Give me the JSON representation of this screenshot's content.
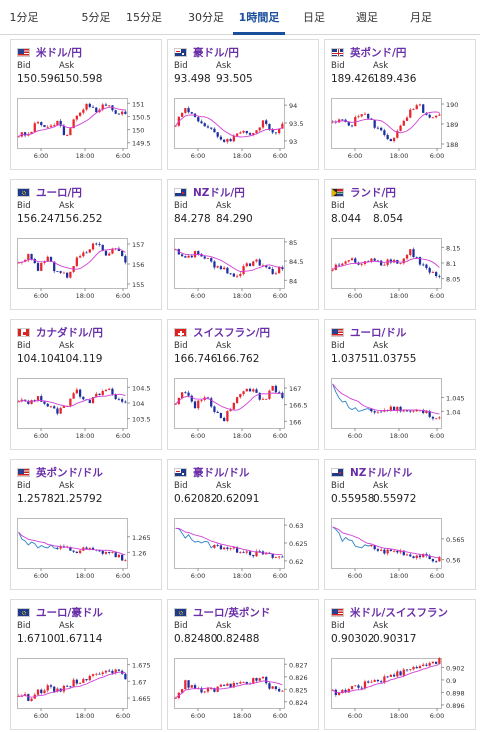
{
  "tabs": [
    {
      "label": "1分足",
      "active": false
    },
    {
      "label": "5分足",
      "active": false
    },
    {
      "label": "15分足",
      "active": false
    },
    {
      "label": "30分足",
      "active": false
    },
    {
      "label": "1時間足",
      "active": true
    },
    {
      "label": "日足",
      "active": false
    },
    {
      "label": "週足",
      "active": false
    },
    {
      "label": "月足",
      "active": false
    }
  ],
  "bid_label": "Bid",
  "ask_label": "Ask",
  "x_ticks": [
    "6:00",
    "18:00",
    "6:00"
  ],
  "colors": {
    "up": "#e8242c",
    "down": "#1b2fa0",
    "ma": "#d23fd6",
    "line": "#2c84c4",
    "frame": "#bbbbbb",
    "title": "#6a2fa8"
  },
  "pairs": [
    {
      "name": "米ドル/円",
      "flag": "us",
      "bid": "150.596",
      "ask": "150.598",
      "y_ticks": [
        "151",
        "150.5",
        "150",
        "149.5"
      ],
      "ylim": [
        149.3,
        151.2
      ],
      "trend": [
        149.8,
        149.8,
        150.3,
        150.0,
        150.3,
        149.7,
        150.6,
        150.9,
        150.7,
        151.0,
        150.6,
        150.7
      ]
    },
    {
      "name": "豪ドル/円",
      "flag": "au",
      "bid": "93.498",
      "ask": "93.505",
      "y_ticks": [
        "94",
        "93.5",
        "93"
      ],
      "ylim": [
        92.8,
        94.2
      ],
      "trend": [
        93.5,
        93.9,
        93.7,
        93.4,
        93.2,
        93.0,
        93.1,
        93.3,
        93.2,
        93.5,
        93.2,
        93.5
      ]
    },
    {
      "name": "英ポンド/円",
      "flag": "gb",
      "bid": "189.426",
      "ask": "189.436",
      "y_ticks": [
        "190",
        "189",
        "188"
      ],
      "ylim": [
        187.8,
        190.3
      ],
      "trend": [
        189.0,
        189.2,
        189.0,
        189.6,
        189.1,
        188.6,
        188.2,
        188.8,
        189.6,
        189.9,
        189.2,
        189.4
      ]
    },
    {
      "name": "ユーロ/円",
      "flag": "eu",
      "bid": "156.247",
      "ask": "156.252",
      "y_ticks": [
        "157",
        "156",
        "155"
      ],
      "ylim": [
        154.8,
        157.3
      ],
      "trend": [
        156.0,
        156.5,
        155.8,
        156.3,
        155.5,
        155.4,
        156.2,
        156.6,
        157.1,
        156.4,
        156.9,
        156.2
      ]
    },
    {
      "name": "NZドル/円",
      "flag": "nz",
      "bid": "84.278",
      "ask": "84.290",
      "y_ticks": [
        "85",
        "84.5",
        "84"
      ],
      "ylim": [
        83.8,
        85.1
      ],
      "trend": [
        84.8,
        84.6,
        84.7,
        84.6,
        84.4,
        84.3,
        84.1,
        84.3,
        84.5,
        84.4,
        84.2,
        84.3
      ]
    },
    {
      "name": "ランド/円",
      "flag": "za",
      "bid": "8.044",
      "ask": "8.054",
      "y_ticks": [
        "8.15",
        "8.1",
        "8.05"
      ],
      "ylim": [
        8.02,
        8.18
      ],
      "trend": [
        8.08,
        8.1,
        8.11,
        8.09,
        8.12,
        8.1,
        8.11,
        8.1,
        8.14,
        8.1,
        8.07,
        8.05
      ]
    },
    {
      "name": "カナダドル/円",
      "flag": "ca",
      "bid": "104.104",
      "ask": "104.119",
      "y_ticks": [
        "104.5",
        "104",
        "103.5"
      ],
      "ylim": [
        103.2,
        104.8
      ],
      "trend": [
        104.1,
        104.0,
        104.2,
        103.9,
        103.7,
        103.9,
        104.4,
        104.0,
        104.2,
        104.5,
        104.1,
        104.1
      ]
    },
    {
      "name": "スイスフラン/円",
      "flag": "ch",
      "bid": "166.746",
      "ask": "166.762",
      "y_ticks": [
        "167",
        "166.5",
        "166"
      ],
      "ylim": [
        165.8,
        167.3
      ],
      "trend": [
        166.6,
        166.9,
        166.4,
        166.8,
        166.3,
        166.1,
        166.6,
        166.9,
        167.0,
        166.6,
        167.0,
        166.7
      ]
    },
    {
      "name": "ユーロ/ドル",
      "flag": "us",
      "bid": "1.03751",
      "ask": "1.03755",
      "y_ticks": [
        "1.045",
        "1.04"
      ],
      "ylim": [
        1.034,
        1.052
      ],
      "trend": [
        1.049,
        1.044,
        1.041,
        1.04,
        1.04,
        1.04,
        1.041,
        1.041,
        1.04,
        1.04,
        1.039,
        1.037
      ]
    },
    {
      "name": "英ポンド/ドル",
      "flag": "us",
      "bid": "1.25782",
      "ask": "1.25792",
      "y_ticks": [
        "1.265",
        "1.26"
      ],
      "ylim": [
        1.255,
        1.271
      ],
      "trend": [
        1.266,
        1.263,
        1.262,
        1.262,
        1.261,
        1.261,
        1.26,
        1.261,
        1.26,
        1.26,
        1.259,
        1.258
      ]
    },
    {
      "name": "豪ドル/ドル",
      "flag": "au",
      "bid": "0.62082",
      "ask": "0.62091",
      "y_ticks": [
        "0.63",
        "0.625",
        "0.62"
      ],
      "ylim": [
        0.618,
        0.632
      ],
      "trend": [
        0.629,
        0.627,
        0.626,
        0.625,
        0.624,
        0.624,
        0.623,
        0.623,
        0.622,
        0.622,
        0.621,
        0.621
      ]
    },
    {
      "name": "NZドル/ドル",
      "flag": "nz",
      "bid": "0.55958",
      "ask": "0.55972",
      "y_ticks": [
        "0.565",
        "0.56"
      ],
      "ylim": [
        0.558,
        0.57
      ],
      "trend": [
        0.568,
        0.565,
        0.564,
        0.563,
        0.563,
        0.562,
        0.562,
        0.562,
        0.561,
        0.561,
        0.56,
        0.56
      ]
    },
    {
      "name": "ユーロ/豪ドル",
      "flag": "eu",
      "bid": "1.67100",
      "ask": "1.67114",
      "y_ticks": [
        "1.675",
        "1.67",
        "1.665"
      ],
      "ylim": [
        1.662,
        1.677
      ],
      "trend": [
        1.666,
        1.665,
        1.667,
        1.668,
        1.667,
        1.669,
        1.67,
        1.671,
        1.672,
        1.674,
        1.673,
        1.671
      ]
    },
    {
      "name": "ユーロ/英ポンド",
      "flag": "eu",
      "bid": "0.82480",
      "ask": "0.82488",
      "y_ticks": [
        "0.827",
        "0.826",
        "0.825",
        "0.824"
      ],
      "ylim": [
        0.8235,
        0.8275
      ],
      "trend": [
        0.8245,
        0.8255,
        0.825,
        0.8248,
        0.825,
        0.8252,
        0.8254,
        0.8255,
        0.8257,
        0.8258,
        0.825,
        0.8248
      ]
    },
    {
      "name": "米ドル/スイスフラン",
      "flag": "us",
      "bid": "0.90302",
      "ask": "0.90317",
      "y_ticks": [
        "0.902",
        "0.9",
        "0.898",
        "0.896"
      ],
      "ylim": [
        0.8955,
        0.9035
      ],
      "trend": [
        0.898,
        0.898,
        0.899,
        0.899,
        0.9,
        0.9,
        0.901,
        0.901,
        0.902,
        0.902,
        0.903,
        0.903
      ]
    }
  ]
}
